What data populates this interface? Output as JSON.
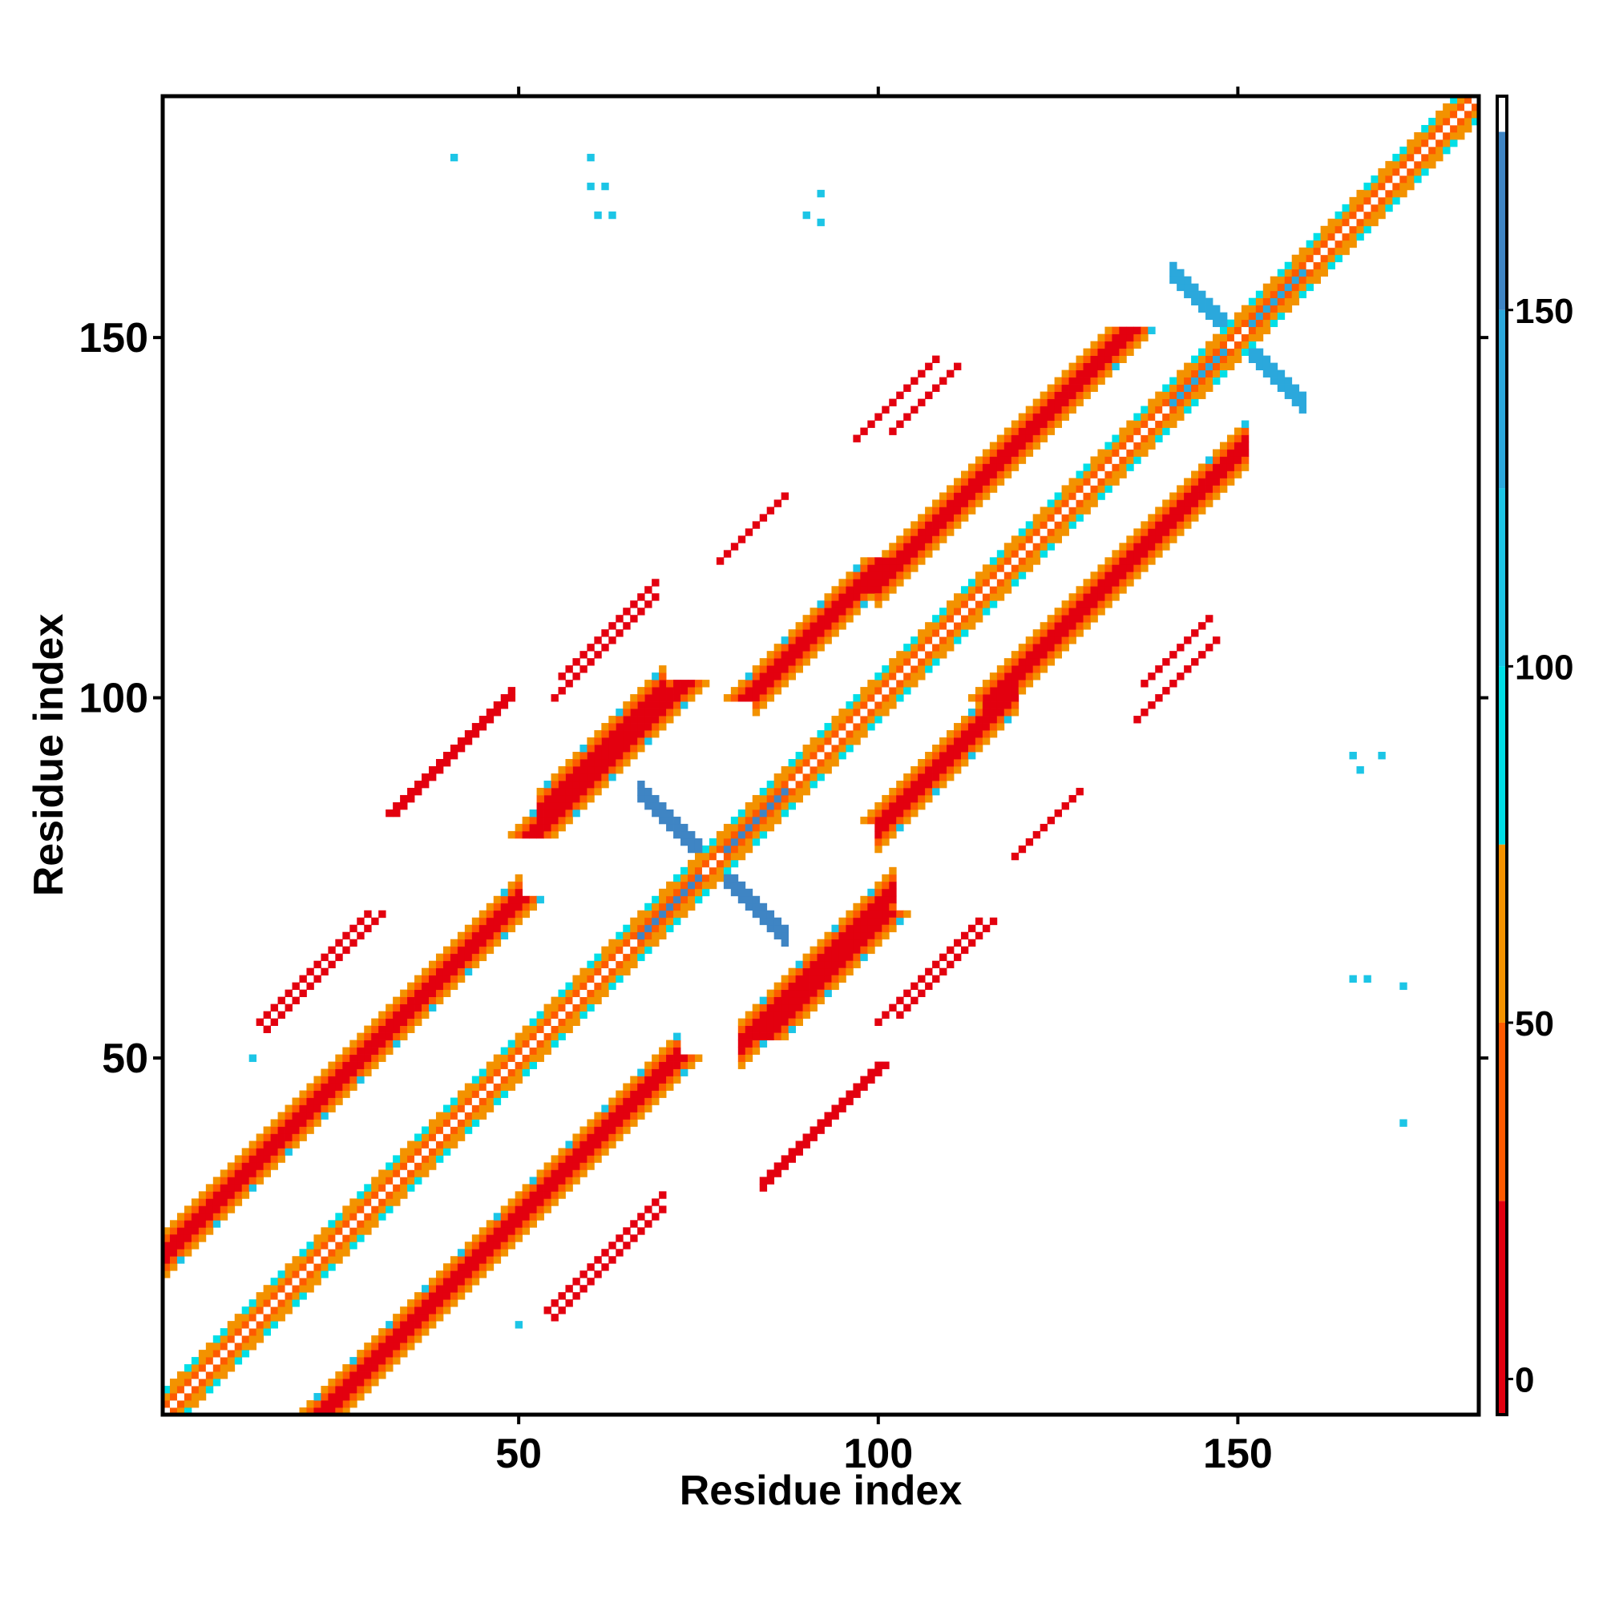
{
  "chart_data": {
    "type": "heatmap",
    "title": "",
    "xlabel": "Residue index",
    "ylabel": "Residue index",
    "xlim": [
      1,
      183
    ],
    "ylim": [
      1,
      183
    ],
    "x_ticks": [
      50,
      100,
      150
    ],
    "y_ticks": [
      50,
      100,
      150
    ],
    "grid": false,
    "colorbar": {
      "ticks": [
        0,
        50,
        100,
        150
      ],
      "range": [
        -5,
        180
      ],
      "bands": [
        {
          "from": -5,
          "to": 25,
          "color": "#e3000f"
        },
        {
          "from": 25,
          "to": 50,
          "color": "#fe5a00"
        },
        {
          "from": 50,
          "to": 75,
          "color": "#f39200"
        },
        {
          "from": 75,
          "to": 100,
          "color": "#00dfe6"
        },
        {
          "from": 100,
          "to": 125,
          "color": "#1cc5e6"
        },
        {
          "from": 125,
          "to": 150,
          "color": "#2ba8dc"
        },
        {
          "from": 150,
          "to": 175,
          "color": "#3f85c4"
        },
        {
          "from": 175,
          "to": 180,
          "color": "#ffffff"
        }
      ]
    },
    "features": {
      "main_diagonal": {
        "from": 1,
        "to": 183,
        "value": 20
      },
      "strands": [
        {
          "x": [
            4,
            50
          ],
          "y_offset": 22,
          "value": 10,
          "width": 3
        },
        {
          "x": [
            23,
            72
          ],
          "y_offset": -22,
          "value": 10,
          "width": 3
        },
        {
          "x": [
            52,
            73
          ],
          "y_offset": 29,
          "value": 10,
          "width": 3
        },
        {
          "x": [
            82,
            101
          ],
          "y_offset": 18,
          "value": 10,
          "width": 3
        },
        {
          "x": [
            84,
            101
          ],
          "y_offset": -31,
          "value": 10,
          "width": 3
        },
        {
          "x": [
            101,
            111
          ],
          "y_offset": -18,
          "value": 10,
          "width": 3
        },
        {
          "x": [
            99,
            135
          ],
          "y_offset": 16,
          "value": 10,
          "width": 3
        },
        {
          "x": [
            116,
            148
          ],
          "y_offset": -16,
          "value": 10,
          "width": 3
        }
      ],
      "weak_lines": [
        {
          "x": [
            14,
            29
          ],
          "y_offset": 41
        },
        {
          "x": [
            33,
            49
          ],
          "y_offset": 51
        },
        {
          "x": [
            55,
            69
          ],
          "y_offset": 45
        },
        {
          "x": [
            78,
            87
          ],
          "y_offset": 41
        },
        {
          "x": [
            84,
            101
          ],
          "y_offset": -52
        },
        {
          "x": [
            103,
            116
          ],
          "y_offset": -47
        },
        {
          "x": [
            102,
            111
          ],
          "y_offset": 35
        },
        {
          "x": [
            136,
            147
          ],
          "y_offset": -39
        },
        {
          "x": [
            54,
            70
          ],
          "y_offset": -39
        }
      ],
      "crosses": [
        {
          "x": 77,
          "y": 77,
          "value": 160,
          "arm": 10
        },
        {
          "x": 150,
          "y": 150,
          "value": 135,
          "arm": 9
        }
      ],
      "specks": [
        {
          "x": 41,
          "y": 175
        },
        {
          "x": 60,
          "y": 175
        },
        {
          "x": 60,
          "y": 171
        },
        {
          "x": 62,
          "y": 171
        },
        {
          "x": 61,
          "y": 167
        },
        {
          "x": 63,
          "y": 167
        },
        {
          "x": 92,
          "y": 170
        },
        {
          "x": 90,
          "y": 167
        },
        {
          "x": 92,
          "y": 166
        },
        {
          "x": 166,
          "y": 92
        },
        {
          "x": 170,
          "y": 92
        },
        {
          "x": 167,
          "y": 90
        },
        {
          "x": 166,
          "y": 61
        },
        {
          "x": 168,
          "y": 61
        },
        {
          "x": 173,
          "y": 60
        },
        {
          "x": 173,
          "y": 41
        },
        {
          "x": 13,
          "y": 50
        },
        {
          "x": 50,
          "y": 13
        }
      ]
    }
  }
}
